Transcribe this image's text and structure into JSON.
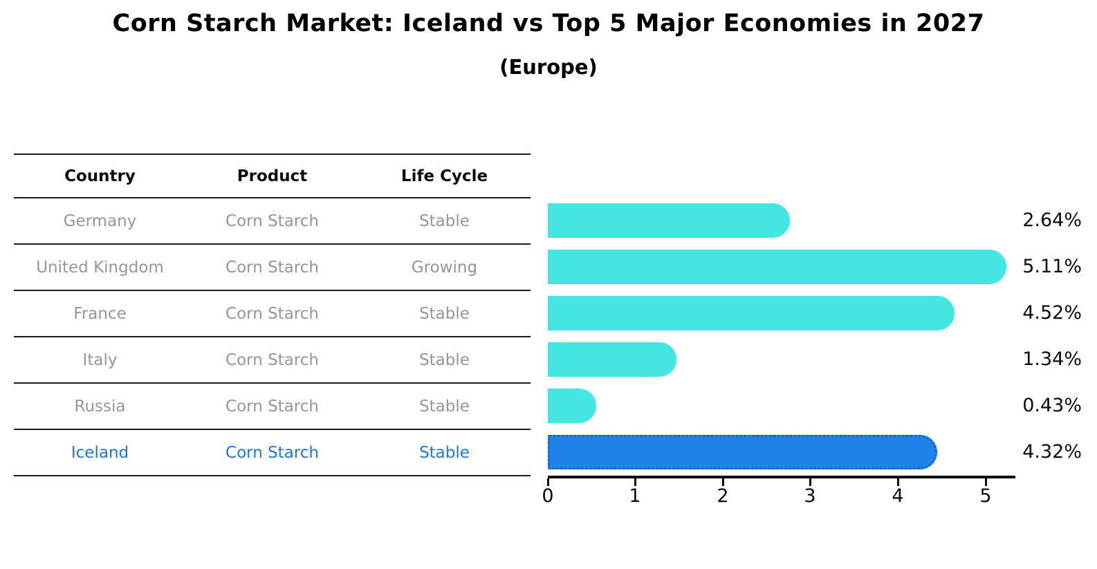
{
  "title": "Corn Starch Market: Iceland vs Top 5 Major Economies in 2027",
  "subtitle": "(Europe)",
  "table": {
    "columns": {
      "country": "Country",
      "product": "Product",
      "life_cycle": "Life Cycle"
    },
    "rows": [
      {
        "country": "Germany",
        "product": "Corn Starch",
        "life_cycle": "Stable"
      },
      {
        "country": "United Kingdom",
        "product": "Corn Starch",
        "life_cycle": "Growing"
      },
      {
        "country": "France",
        "product": "Corn Starch",
        "life_cycle": "Stable"
      },
      {
        "country": "Italy",
        "product": "Corn Starch",
        "life_cycle": "Stable"
      },
      {
        "country": "Russia",
        "product": "Corn Starch",
        "life_cycle": "Stable"
      },
      {
        "country": "Iceland",
        "product": "Corn Starch",
        "life_cycle": "Stable"
      }
    ],
    "highlighted_country": "Iceland"
  },
  "chart_data": {
    "type": "bar",
    "orientation": "horizontal",
    "title": "Corn Starch Market: Iceland vs Top 5 Major Economies in 2027",
    "subtitle": "(Europe)",
    "categories": [
      "Germany",
      "United Kingdom",
      "France",
      "Italy",
      "Russia",
      "Iceland"
    ],
    "values": [
      2.64,
      5.11,
      4.52,
      1.34,
      0.43,
      4.32
    ],
    "value_labels": [
      "2.64%",
      "5.11%",
      "4.52%",
      "1.34%",
      "0.43%",
      "4.32%"
    ],
    "unit": "%",
    "highlight_index": 5,
    "xlim": [
      0,
      5.35
    ],
    "xticks": [
      "0",
      "1",
      "2",
      "3",
      "4",
      "5"
    ],
    "grid": false,
    "legend": false,
    "bar_color": "#45E6E2",
    "highlight_bar_color": "#1E82E8",
    "highlight_bar_border_color": "#1565C8"
  },
  "colors": {
    "background": "#FFFFFF",
    "title_text": "#000000",
    "header_text": "#0D0D0D",
    "row_text": "#969696",
    "highlight_text": "#1F78D1",
    "line": "#1A1A1A",
    "axis": "#0D0D0D",
    "value_text": "#0D0D0D"
  }
}
